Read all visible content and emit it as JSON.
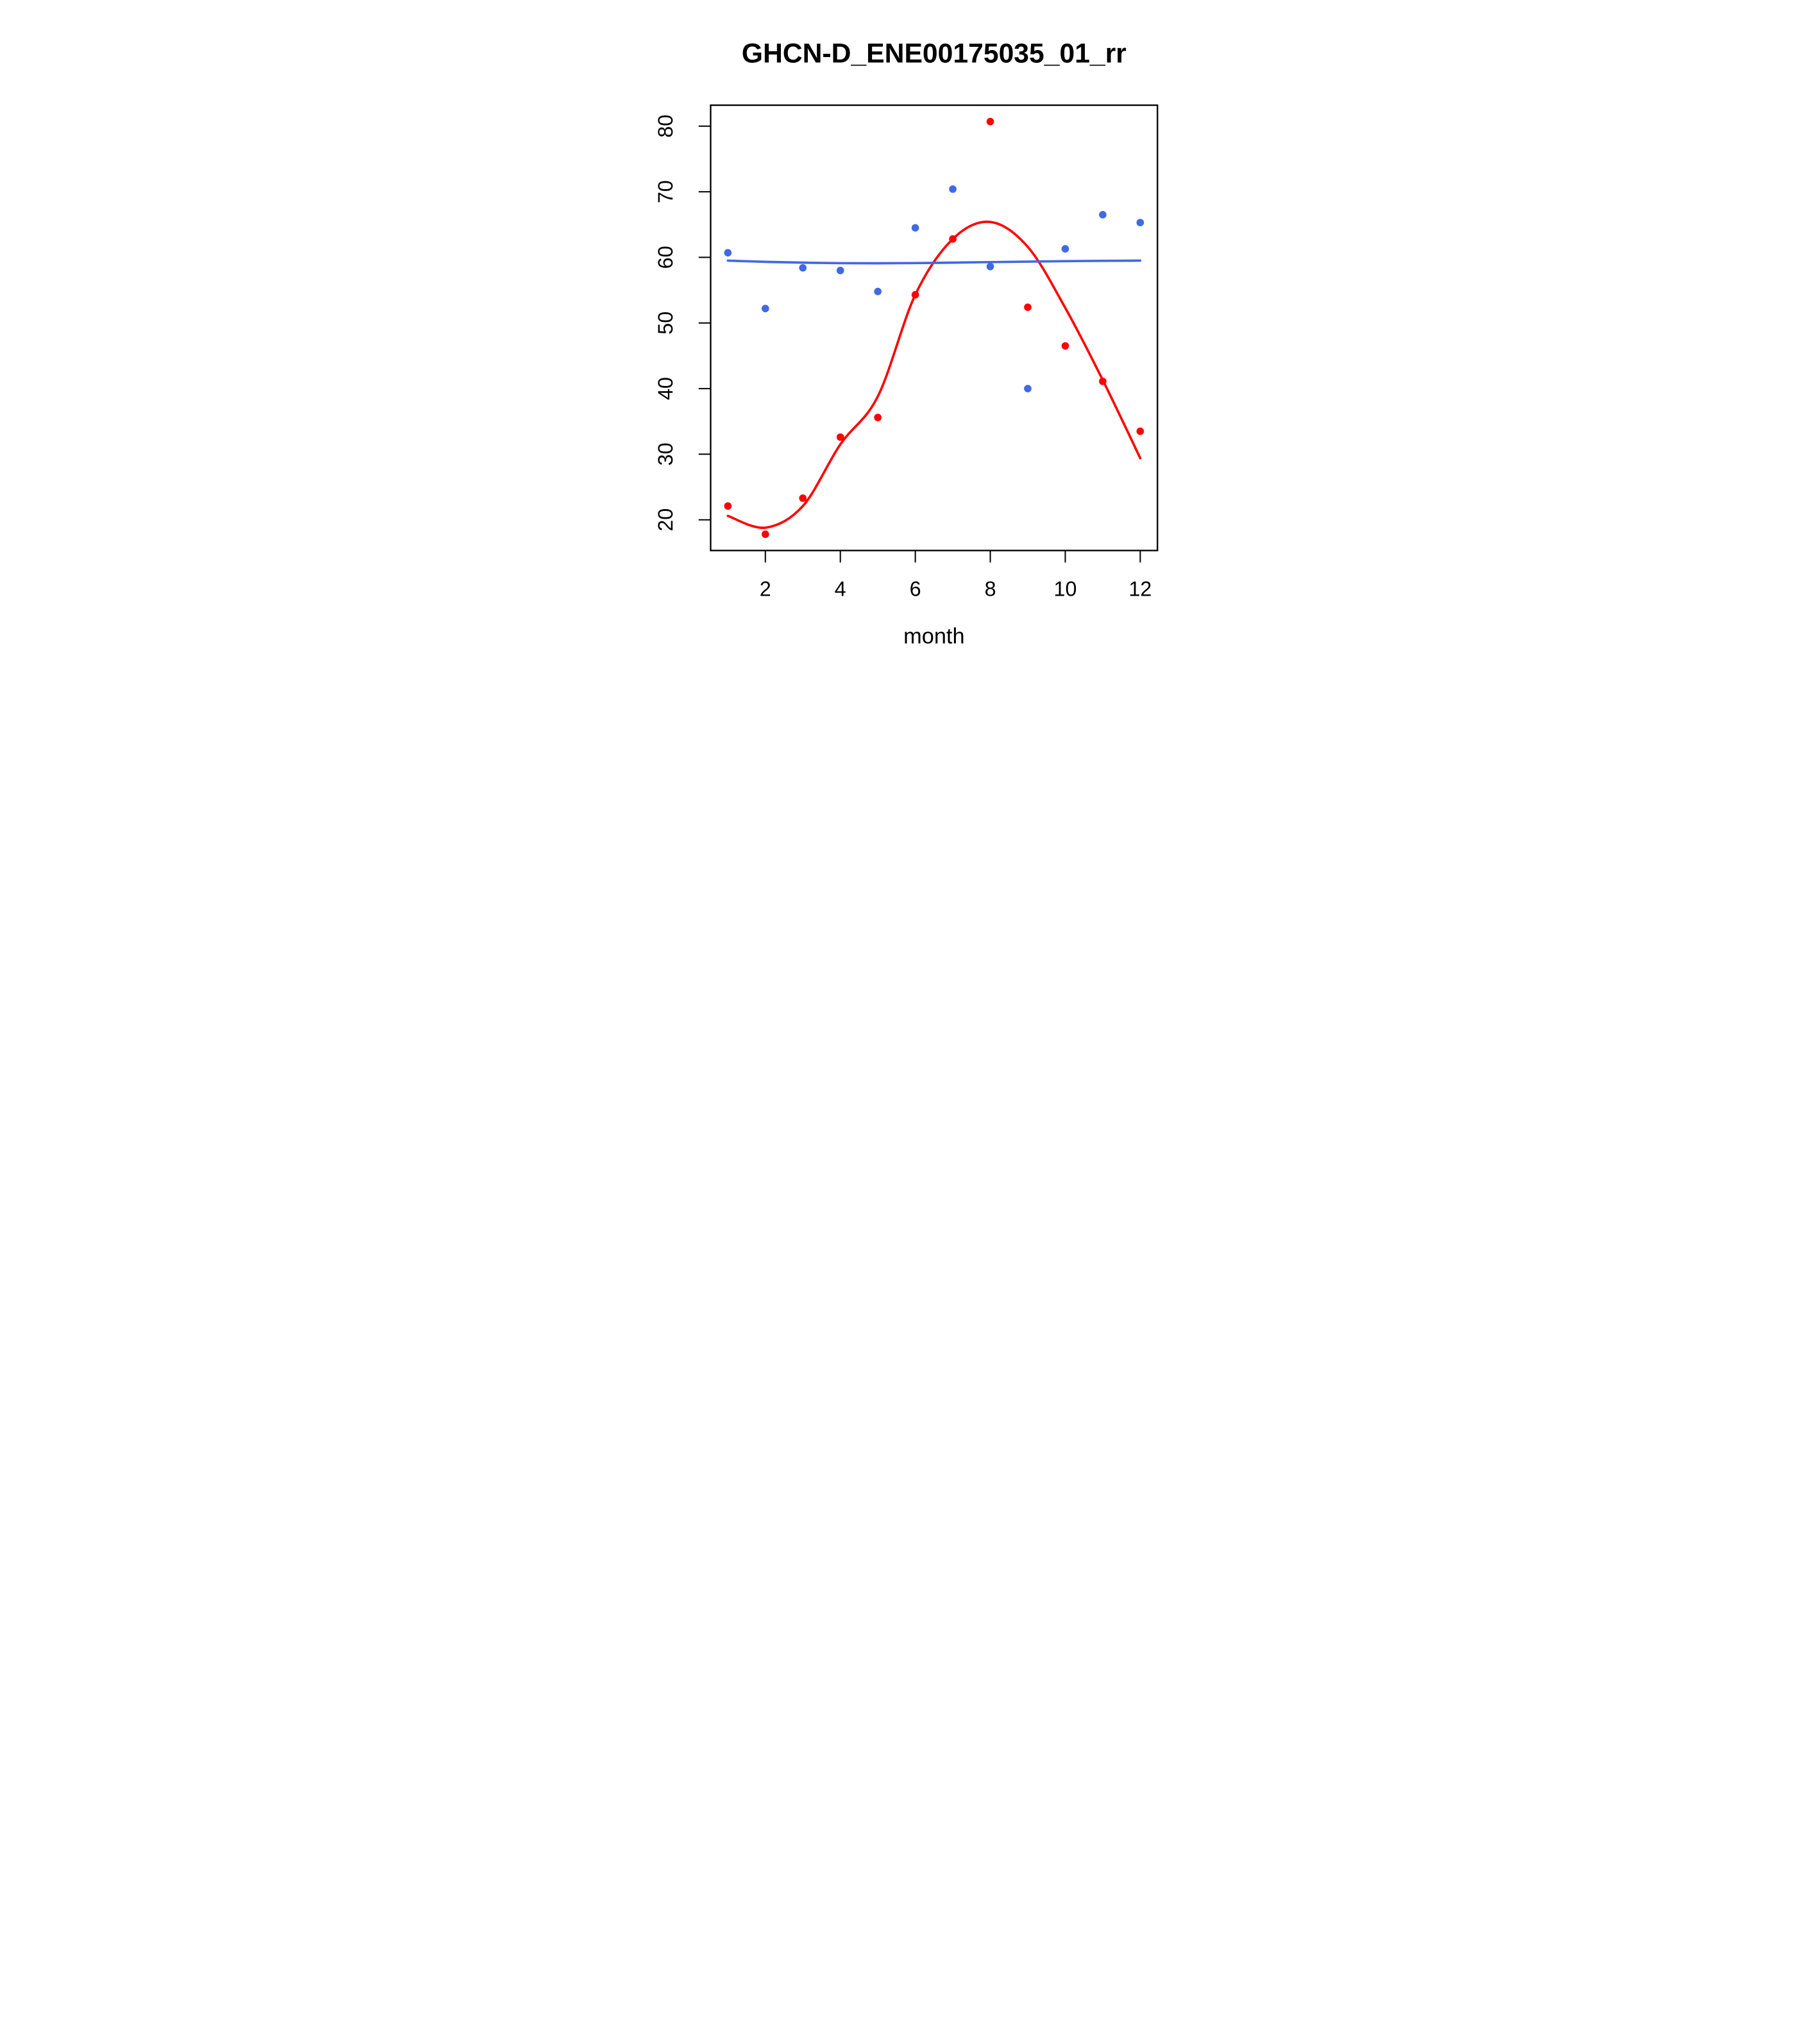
{
  "chart_data": {
    "type": "scatter",
    "title": "GHCN-D_ENE00175035_01_rr",
    "xlabel": "month",
    "ylabel": "",
    "x_ticks": [
      2,
      4,
      6,
      8,
      10,
      12
    ],
    "y_ticks": [
      20,
      30,
      40,
      50,
      60,
      70,
      80
    ],
    "xlim": [
      0.56,
      12.44
    ],
    "ylim": [
      15.2,
      83.3
    ],
    "grid": false,
    "legend": "none",
    "x": [
      1,
      2,
      3,
      4,
      5,
      6,
      7,
      8,
      9,
      10,
      11,
      12
    ],
    "series": [
      {
        "name": "red-monthly-values",
        "type": "scatter+smooth-line",
        "color": "#FF0000",
        "points": [
          22.1,
          17.8,
          23.3,
          32.6,
          35.6,
          54.3,
          62.8,
          80.7,
          52.4,
          46.5,
          41.1,
          33.5
        ],
        "smooth_line": [
          20.6,
          18.8,
          22.1,
          31.5,
          38.8,
          54.3,
          62.8,
          65.4,
          61.6,
          52.3,
          41.3,
          29.4
        ]
      },
      {
        "name": "blue-monthly-values",
        "type": "scatter+smooth-line",
        "color": "#4169E1",
        "points": [
          60.7,
          52.2,
          58.4,
          58.0,
          54.8,
          64.5,
          70.4,
          58.6,
          40.0,
          61.3,
          66.5,
          65.3
        ],
        "smooth_line": [
          59.5,
          59.32,
          59.2,
          59.12,
          59.1,
          59.13,
          59.2,
          59.28,
          59.35,
          59.42,
          59.47,
          59.5
        ]
      }
    ]
  }
}
